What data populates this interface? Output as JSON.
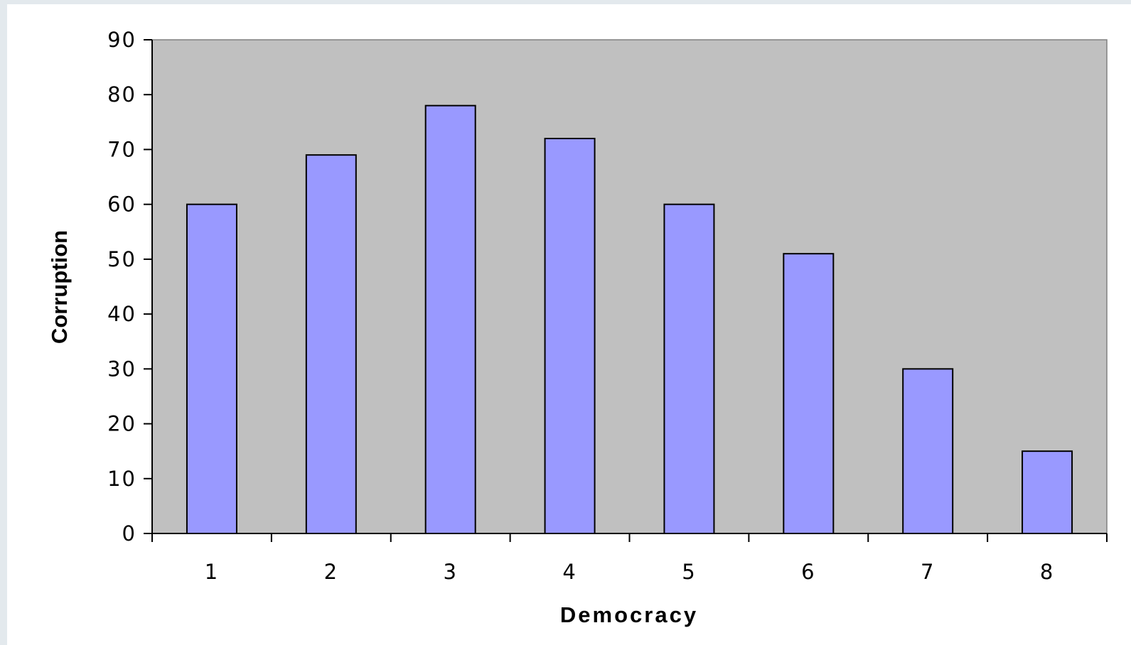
{
  "chart_data": {
    "type": "bar",
    "title": "",
    "xlabel": "Democracy",
    "ylabel": "Corruption",
    "categories": [
      "1",
      "2",
      "3",
      "4",
      "5",
      "6",
      "7",
      "8"
    ],
    "values": [
      60,
      69,
      78,
      72,
      60,
      51,
      30,
      15
    ],
    "ylim": [
      0,
      90
    ],
    "y_ticks": [
      "0",
      "10",
      "20",
      "30",
      "40",
      "50",
      "60",
      "70",
      "80",
      "90"
    ],
    "grid": false,
    "legend": "none",
    "colors": {
      "bar_fill": "#9999ff",
      "bar_stroke": "#000000",
      "plot_background": "#c0c0c0",
      "page_background": "#ffffff",
      "outer_background": "#e3e9ed"
    }
  }
}
